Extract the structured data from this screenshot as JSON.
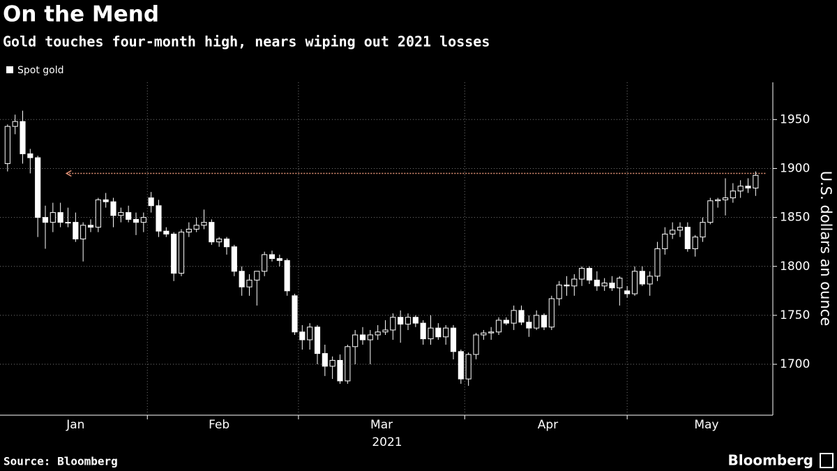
{
  "chart_data": {
    "type": "candlestick",
    "title": "On the Mend",
    "subtitle": "Gold touches four-month high, nears wiping out 2021 losses",
    "y_label": "U.S. dollars an ounce",
    "x_label": "2021",
    "source": "Source: Bloomberg",
    "brand": "Bloomberg",
    "series": [
      {
        "name": "Spot gold",
        "color": "#ffffff",
        "open": [
          1905,
          1943,
          1948,
          1915,
          1911,
          1850,
          1845,
          1855,
          1845,
          1845,
          1828,
          1842,
          1840,
          1868,
          1866,
          1852,
          1855,
          1848,
          1845,
          1870,
          1862,
          1836,
          1833,
          1793,
          1835,
          1838,
          1842,
          1845,
          1825,
          1828,
          1820,
          1795,
          1779,
          1786,
          1795,
          1812,
          1808,
          1806,
          1770,
          1733,
          1725,
          1738,
          1711,
          1698,
          1704,
          1683,
          1718,
          1730,
          1725,
          1730,
          1733,
          1735,
          1748,
          1741,
          1748,
          1742,
          1726,
          1737,
          1728,
          1737,
          1713,
          1685,
          1710,
          1730,
          1732,
          1733,
          1745,
          1742,
          1755,
          1743,
          1737,
          1750,
          1738,
          1767,
          1781,
          1780,
          1787,
          1798,
          1786,
          1780,
          1783,
          1778,
          1775,
          1772,
          1795,
          1782,
          1790,
          1818,
          1833,
          1837,
          1840,
          1818,
          1830,
          1845,
          1867,
          1868,
          1870,
          1877,
          1882,
          1880
        ],
        "high": [
          1945,
          1955,
          1959,
          1920,
          1913,
          1862,
          1865,
          1865,
          1860,
          1855,
          1845,
          1848,
          1870,
          1875,
          1870,
          1860,
          1862,
          1855,
          1855,
          1876,
          1868,
          1840,
          1835,
          1838,
          1845,
          1850,
          1858,
          1848,
          1830,
          1830,
          1822,
          1800,
          1792,
          1795,
          1815,
          1816,
          1812,
          1808,
          1772,
          1740,
          1742,
          1740,
          1720,
          1708,
          1710,
          1720,
          1735,
          1738,
          1735,
          1740,
          1745,
          1752,
          1755,
          1752,
          1750,
          1745,
          1750,
          1742,
          1740,
          1740,
          1715,
          1712,
          1732,
          1735,
          1738,
          1748,
          1748,
          1760,
          1760,
          1750,
          1755,
          1752,
          1770,
          1785,
          1790,
          1792,
          1800,
          1800,
          1795,
          1788,
          1790,
          1790,
          1780,
          1800,
          1800,
          1795,
          1825,
          1840,
          1845,
          1845,
          1845,
          1832,
          1850,
          1870,
          1870,
          1890,
          1885,
          1888,
          1890,
          1897
        ],
        "low": [
          1897,
          1935,
          1905,
          1895,
          1830,
          1818,
          1835,
          1840,
          1840,
          1825,
          1805,
          1835,
          1835,
          1860,
          1840,
          1845,
          1845,
          1832,
          1835,
          1855,
          1830,
          1830,
          1785,
          1790,
          1830,
          1835,
          1838,
          1822,
          1820,
          1812,
          1790,
          1770,
          1770,
          1760,
          1790,
          1805,
          1800,
          1770,
          1730,
          1715,
          1715,
          1700,
          1688,
          1685,
          1680,
          1680,
          1700,
          1720,
          1700,
          1725,
          1730,
          1725,
          1722,
          1735,
          1738,
          1720,
          1720,
          1725,
          1720,
          1705,
          1680,
          1678,
          1705,
          1725,
          1725,
          1730,
          1740,
          1735,
          1740,
          1728,
          1735,
          1735,
          1735,
          1760,
          1770,
          1770,
          1780,
          1782,
          1775,
          1775,
          1775,
          1760,
          1768,
          1770,
          1780,
          1770,
          1785,
          1812,
          1828,
          1830,
          1815,
          1810,
          1825,
          1843,
          1860,
          1852,
          1865,
          1870,
          1875,
          1872
        ],
        "close": [
          1943,
          1948,
          1915,
          1911,
          1850,
          1845,
          1855,
          1845,
          1845,
          1828,
          1842,
          1840,
          1868,
          1866,
          1852,
          1855,
          1848,
          1845,
          1850,
          1862,
          1836,
          1833,
          1793,
          1835,
          1838,
          1842,
          1845,
          1825,
          1828,
          1820,
          1795,
          1779,
          1786,
          1795,
          1812,
          1808,
          1806,
          1775,
          1733,
          1725,
          1738,
          1711,
          1698,
          1704,
          1683,
          1718,
          1730,
          1725,
          1730,
          1733,
          1735,
          1748,
          1741,
          1748,
          1742,
          1726,
          1737,
          1728,
          1737,
          1713,
          1685,
          1710,
          1730,
          1732,
          1733,
          1745,
          1742,
          1755,
          1743,
          1737,
          1750,
          1738,
          1767,
          1781,
          1780,
          1787,
          1798,
          1786,
          1780,
          1783,
          1778,
          1788,
          1772,
          1795,
          1782,
          1790,
          1818,
          1833,
          1837,
          1840,
          1818,
          1830,
          1845,
          1867,
          1868,
          1870,
          1877,
          1882,
          1880,
          1893
        ]
      }
    ],
    "reference_line": {
      "value": 1895,
      "color": "#e8957a"
    },
    "xlim": [
      -1,
      101
    ],
    "xticks": [
      {
        "value": 9,
        "label": "Jan"
      },
      {
        "value": 28,
        "label": "Feb"
      },
      {
        "value": 49.5,
        "label": "Mar"
      },
      {
        "value": 71.5,
        "label": "Apr"
      },
      {
        "value": 92.5,
        "label": "May"
      }
    ],
    "x_grid": [
      18.5,
      38.5,
      60.5,
      82
    ],
    "ylim": [
      1648,
      1988
    ],
    "yticks": [
      1700,
      1750,
      1800,
      1850,
      1900,
      1950
    ],
    "grid": true
  }
}
